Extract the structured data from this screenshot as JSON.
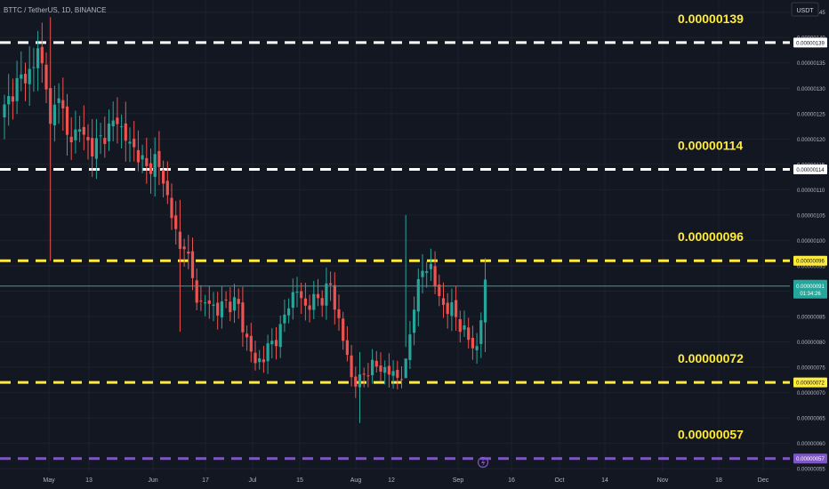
{
  "header": {
    "symbol_info": "BTTC / TetherUS, 1D, BINANCE",
    "currency_button": "USDT"
  },
  "axis": {
    "ylim": [
      5.45e-07,
      1.474e-06
    ],
    "price_ticks": [
      {
        "label": "0.00000145",
        "value": 1.45e-06
      },
      {
        "label": "0.00000140",
        "value": 1.4e-06
      },
      {
        "label": "0.00000135",
        "value": 1.35e-06
      },
      {
        "label": "0.00000130",
        "value": 1.3e-06
      },
      {
        "label": "0.00000125",
        "value": 1.25e-06
      },
      {
        "label": "0.00000120",
        "value": 1.2e-06
      },
      {
        "label": "0.00000115",
        "value": 1.15e-06
      },
      {
        "label": "0.00000110",
        "value": 1.1e-06
      },
      {
        "label": "0.00000105",
        "value": 1.05e-06
      },
      {
        "label": "0.00000100",
        "value": 1e-06
      },
      {
        "label": "0.00000095",
        "value": 9.5e-07
      },
      {
        "label": "0.00000090",
        "value": 9e-07
      },
      {
        "label": "0.00000085",
        "value": 8.5e-07
      },
      {
        "label": "0.00000080",
        "value": 8e-07
      },
      {
        "label": "0.00000075",
        "value": 7.5e-07
      },
      {
        "label": "0.00000070",
        "value": 7e-07
      },
      {
        "label": "0.00000065",
        "value": 6.5e-07
      },
      {
        "label": "0.00000060",
        "value": 6e-07
      },
      {
        "label": "0.00000055",
        "value": 5.5e-07
      }
    ],
    "date_ticks": [
      "May",
      "13",
      "Jun",
      "17",
      "Jul",
      "15",
      "Aug",
      "12",
      "Sep",
      "16",
      "Oct",
      "14",
      "Nov",
      "18",
      "Dec"
    ]
  },
  "levels": [
    {
      "label": "0.00000139",
      "value": 1.39e-06,
      "color": "#ffffff"
    },
    {
      "label": "0.00000114",
      "value": 1.14e-06,
      "color": "#ffffff"
    },
    {
      "label": "0.00000096",
      "value": 9.6e-07,
      "color": "#ffeb3b"
    },
    {
      "label": "0.00000072",
      "value": 7.2e-07,
      "color": "#ffeb3b"
    },
    {
      "label": "0.00000057",
      "value": 5.7e-07,
      "color": "#7e57c2"
    }
  ],
  "current_price": {
    "label": "0.00000091",
    "countdown": "01:34:26",
    "value": 9.1e-07,
    "color": "#26a69a"
  },
  "colors": {
    "up": "#26a69a",
    "down": "#ef5350",
    "background": "#131722",
    "grid": "#1e222d",
    "text": "#b2b5be",
    "level_text": "#ffeb3b"
  },
  "event_icon": "lightning-icon",
  "chart_data": {
    "type": "candlestick",
    "series": [
      {
        "name": "BTTC / TetherUS",
        "values": []
      }
    ],
    "anchors": [
      [
        0,
        1.26
      ],
      [
        3,
        1.31
      ],
      [
        7,
        1.34
      ],
      [
        8,
        1.38
      ],
      [
        10,
        1.31
      ],
      [
        11,
        1.22
      ],
      [
        13,
        1.3
      ],
      [
        15,
        1.2
      ],
      [
        18,
        1.22
      ],
      [
        21,
        1.18
      ],
      [
        24,
        1.21
      ],
      [
        27,
        1.24
      ],
      [
        29,
        1.2
      ],
      [
        32,
        1.17
      ],
      [
        34,
        1.14
      ],
      [
        36,
        1.16
      ],
      [
        38,
        1.12
      ],
      [
        40,
        1.05
      ],
      [
        42,
        0.98
      ],
      [
        43,
        1.0
      ],
      [
        45,
        0.92
      ],
      [
        47,
        0.87
      ],
      [
        49,
        0.88
      ],
      [
        51,
        0.86
      ],
      [
        53,
        0.88
      ],
      [
        56,
        0.87
      ],
      [
        58,
        0.8
      ],
      [
        60,
        0.76
      ],
      [
        62,
        0.77
      ],
      [
        64,
        0.8
      ],
      [
        66,
        0.82
      ],
      [
        68,
        0.88
      ],
      [
        70,
        0.9
      ],
      [
        72,
        0.87
      ],
      [
        74,
        0.88
      ],
      [
        76,
        0.89
      ],
      [
        78,
        0.91
      ],
      [
        80,
        0.84
      ],
      [
        82,
        0.77
      ],
      [
        83,
        0.73
      ],
      [
        85,
        0.72
      ],
      [
        87,
        0.75
      ],
      [
        90,
        0.75
      ],
      [
        92,
        0.74
      ],
      [
        94,
        0.73
      ],
      [
        96,
        0.75
      ],
      [
        98,
        0.88
      ],
      [
        100,
        0.94
      ],
      [
        102,
        0.95
      ],
      [
        104,
        0.88
      ],
      [
        106,
        0.87
      ],
      [
        108,
        0.85
      ],
      [
        110,
        0.82
      ],
      [
        112,
        0.79
      ],
      [
        113,
        0.79
      ],
      [
        115,
        0.91
      ]
    ]
  }
}
